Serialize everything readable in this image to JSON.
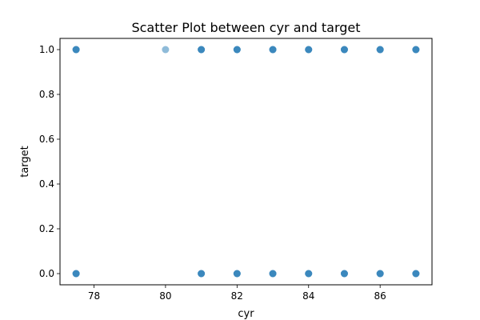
{
  "chart_data": {
    "type": "scatter",
    "title": "Scatter Plot between cyr and target",
    "xlabel": "cyr",
    "ylabel": "target",
    "xlim": [
      77.05,
      87.45
    ],
    "ylim": [
      -0.05,
      1.05
    ],
    "xticks": [
      78,
      80,
      82,
      84,
      86
    ],
    "yticks": [
      0.0,
      0.2,
      0.4,
      0.6,
      0.8,
      1.0
    ],
    "ytick_labels": [
      "0.0",
      "0.2",
      "0.4",
      "0.6",
      "0.8",
      "1.0"
    ],
    "grid": false,
    "marker_color": "#1f77b4",
    "marker_alpha": 0.5,
    "points": [
      {
        "x": 77.5,
        "y": 1
      },
      {
        "x": 77.5,
        "y": 1
      },
      {
        "x": 77.5,
        "y": 1
      },
      {
        "x": 80,
        "y": 1
      },
      {
        "x": 81,
        "y": 1
      },
      {
        "x": 81,
        "y": 1
      },
      {
        "x": 81,
        "y": 1
      },
      {
        "x": 82,
        "y": 1
      },
      {
        "x": 82,
        "y": 1
      },
      {
        "x": 82,
        "y": 1
      },
      {
        "x": 83,
        "y": 1
      },
      {
        "x": 83,
        "y": 1
      },
      {
        "x": 83,
        "y": 1
      },
      {
        "x": 84,
        "y": 1
      },
      {
        "x": 84,
        "y": 1
      },
      {
        "x": 84,
        "y": 1
      },
      {
        "x": 85,
        "y": 1
      },
      {
        "x": 85,
        "y": 1
      },
      {
        "x": 85,
        "y": 1
      },
      {
        "x": 86,
        "y": 1
      },
      {
        "x": 86,
        "y": 1
      },
      {
        "x": 86,
        "y": 1
      },
      {
        "x": 87,
        "y": 1
      },
      {
        "x": 87,
        "y": 1
      },
      {
        "x": 87,
        "y": 1
      },
      {
        "x": 77.5,
        "y": 0
      },
      {
        "x": 77.5,
        "y": 0
      },
      {
        "x": 77.5,
        "y": 0
      },
      {
        "x": 81,
        "y": 0
      },
      {
        "x": 81,
        "y": 0
      },
      {
        "x": 81,
        "y": 0
      },
      {
        "x": 82,
        "y": 0
      },
      {
        "x": 82,
        "y": 0
      },
      {
        "x": 82,
        "y": 0
      },
      {
        "x": 83,
        "y": 0
      },
      {
        "x": 83,
        "y": 0
      },
      {
        "x": 83,
        "y": 0
      },
      {
        "x": 84,
        "y": 0
      },
      {
        "x": 84,
        "y": 0
      },
      {
        "x": 84,
        "y": 0
      },
      {
        "x": 85,
        "y": 0
      },
      {
        "x": 85,
        "y": 0
      },
      {
        "x": 85,
        "y": 0
      },
      {
        "x": 86,
        "y": 0
      },
      {
        "x": 86,
        "y": 0
      },
      {
        "x": 86,
        "y": 0
      },
      {
        "x": 87,
        "y": 0
      },
      {
        "x": 87,
        "y": 0
      },
      {
        "x": 87,
        "y": 0
      }
    ]
  }
}
